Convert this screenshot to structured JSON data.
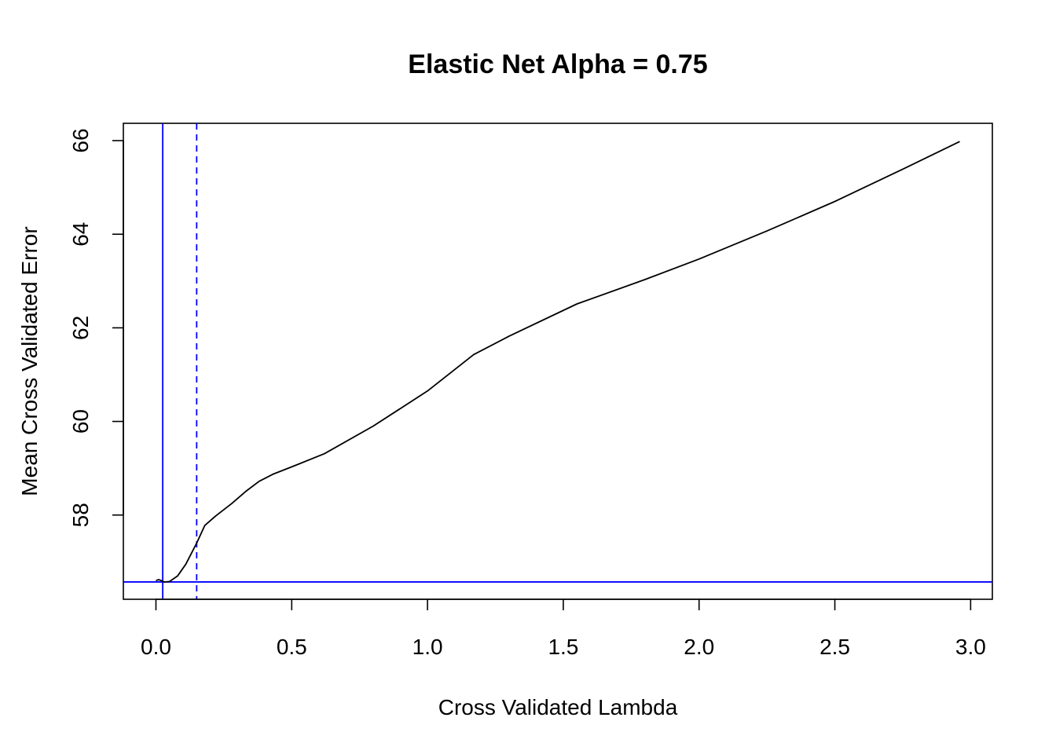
{
  "chart_data": {
    "type": "line",
    "title": "Elastic Net Alpha = 0.75",
    "xlabel": "Cross Validated Lambda",
    "ylabel": "Mean Cross Validated Error",
    "xlim": [
      -0.12,
      3.08
    ],
    "ylim": [
      56.2,
      66.37
    ],
    "x_ticks": [
      0.0,
      0.5,
      1.0,
      1.5,
      2.0,
      2.5,
      3.0
    ],
    "x_tick_labels": [
      "0.0",
      "0.5",
      "1.0",
      "1.5",
      "2.0",
      "2.5",
      "3.0"
    ],
    "y_ticks": [
      58,
      60,
      62,
      64,
      66
    ],
    "y_tick_labels": [
      "58",
      "60",
      "62",
      "64",
      "66"
    ],
    "grid": false,
    "legend": "none",
    "series": [
      {
        "color": "#000000",
        "x": [
          0.0,
          0.01,
          0.02,
          0.03,
          0.05,
          0.08,
          0.11,
          0.15,
          0.18,
          0.22,
          0.28,
          0.33,
          0.38,
          0.43,
          0.5,
          0.62,
          0.8,
          1.0,
          1.17,
          1.3,
          1.55,
          1.8,
          2.0,
          2.25,
          2.5,
          2.75,
          2.96
        ],
        "y": [
          56.6,
          56.62,
          56.6,
          56.57,
          56.58,
          56.7,
          56.95,
          57.4,
          57.78,
          57.98,
          58.25,
          58.5,
          58.72,
          58.87,
          59.03,
          59.31,
          59.9,
          60.65,
          61.43,
          61.82,
          62.51,
          63.03,
          63.47,
          64.07,
          64.7,
          65.39,
          65.98
        ]
      }
    ],
    "reference_lines": {
      "color": "#0000ff",
      "vlines": [
        {
          "x": 0.025,
          "style": "solid"
        },
        {
          "x": 0.15,
          "style": "dashed"
        }
      ],
      "hlines": [
        {
          "y": 56.57,
          "style": "solid"
        }
      ]
    }
  }
}
